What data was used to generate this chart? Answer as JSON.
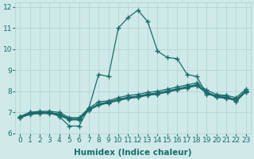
{
  "title": "",
  "xlabel": "Humidex (Indice chaleur)",
  "xlim": [
    -0.5,
    23.5
  ],
  "ylim": [
    6,
    12.2
  ],
  "yticks": [
    6,
    7,
    8,
    9,
    10,
    11,
    12
  ],
  "xticks": [
    0,
    1,
    2,
    3,
    4,
    5,
    6,
    7,
    8,
    9,
    10,
    11,
    12,
    13,
    14,
    15,
    16,
    17,
    18,
    19,
    20,
    21,
    22,
    23
  ],
  "bg_color": "#cfe9e9",
  "line_color": "#1a6b6b",
  "grid_color": "#b0d0d0",
  "lines": [
    {
      "x": [
        0,
        1,
        2,
        3,
        4,
        5,
        6,
        7,
        8,
        9,
        10,
        11,
        12,
        13,
        14,
        15,
        16,
        17,
        18,
        19,
        20,
        21,
        22,
        23
      ],
      "y": [
        6.8,
        7.0,
        7.0,
        7.0,
        6.8,
        6.35,
        6.35,
        7.2,
        8.8,
        8.7,
        11.0,
        11.5,
        11.85,
        11.3,
        9.9,
        9.6,
        9.55,
        8.8,
        8.7,
        7.85,
        7.8,
        7.8,
        7.5,
        8.0
      ]
    },
    {
      "x": [
        0,
        1,
        2,
        3,
        4,
        5,
        6,
        7,
        8,
        9,
        10,
        11,
        12,
        13,
        14,
        15,
        16,
        17,
        18,
        19,
        20,
        21,
        22,
        23
      ],
      "y": [
        6.8,
        7.0,
        7.05,
        7.05,
        7.0,
        6.75,
        6.75,
        7.2,
        7.5,
        7.55,
        7.7,
        7.8,
        7.85,
        7.95,
        8.0,
        8.1,
        8.2,
        8.3,
        8.4,
        8.05,
        7.85,
        7.8,
        7.7,
        8.1
      ]
    },
    {
      "x": [
        0,
        1,
        2,
        3,
        4,
        5,
        6,
        7,
        8,
        9,
        10,
        11,
        12,
        13,
        14,
        15,
        16,
        17,
        18,
        19,
        20,
        21,
        22,
        23
      ],
      "y": [
        6.78,
        6.95,
        7.0,
        7.0,
        6.92,
        6.7,
        6.7,
        7.15,
        7.4,
        7.5,
        7.62,
        7.72,
        7.77,
        7.87,
        7.92,
        8.02,
        8.12,
        8.22,
        8.32,
        7.97,
        7.77,
        7.72,
        7.62,
        8.02
      ]
    },
    {
      "x": [
        0,
        1,
        2,
        3,
        4,
        5,
        6,
        7,
        8,
        9,
        10,
        11,
        12,
        13,
        14,
        15,
        16,
        17,
        18,
        19,
        20,
        21,
        22,
        23
      ],
      "y": [
        6.76,
        6.92,
        6.97,
        6.97,
        6.89,
        6.67,
        6.67,
        7.12,
        7.37,
        7.47,
        7.59,
        7.69,
        7.74,
        7.84,
        7.89,
        7.99,
        8.09,
        8.19,
        8.29,
        7.94,
        7.74,
        7.69,
        7.59,
        7.99
      ]
    },
    {
      "x": [
        0,
        1,
        2,
        3,
        4,
        5,
        6,
        7,
        8,
        9,
        10,
        11,
        12,
        13,
        14,
        15,
        16,
        17,
        18,
        19,
        20,
        21,
        22,
        23
      ],
      "y": [
        6.74,
        6.9,
        6.94,
        6.94,
        6.86,
        6.64,
        6.64,
        7.09,
        7.34,
        7.44,
        7.56,
        7.66,
        7.71,
        7.81,
        7.86,
        7.96,
        8.06,
        8.16,
        8.26,
        7.91,
        7.71,
        7.66,
        7.56,
        7.96
      ]
    }
  ],
  "marker": "+",
  "markersize": 4,
  "linewidth": 0.9,
  "xlabel_fontsize": 7.5,
  "tick_fontsize": 6.5
}
